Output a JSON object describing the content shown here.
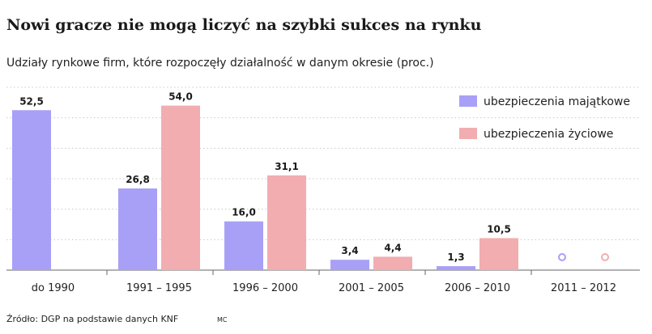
{
  "title": "Nowi gracze nie mogą liczyć na szybki sukces na rynku",
  "subtitle": "Udziały rynkowe firm, które rozpoczęły działalność w danym okresie (proc.)",
  "source": "Źródło: DGP na podstawie danych KNF",
  "credit": "MC",
  "colors": {
    "majatkowe": "#a8a0f6",
    "zyciowe": "#f2adb1",
    "grid": "#c8c8c8",
    "axis": "#666666"
  },
  "chart_data": {
    "type": "bar",
    "categories": [
      "do 1990",
      "1991 – 1995",
      "1996 – 2000",
      "2001 – 2005",
      "2006 – 2010",
      "2011 – 2012"
    ],
    "series": [
      {
        "name": "ubezpieczenia majątkowe",
        "values": [
          52.5,
          26.8,
          16.0,
          3.4,
          1.3,
          null
        ],
        "labels": [
          "52,5",
          "26,8",
          "16,0",
          "3,4",
          "1,3",
          ""
        ]
      },
      {
        "name": "ubezpieczenia życiowe",
        "values": [
          null,
          54.0,
          31.1,
          4.4,
          10.5,
          null
        ],
        "labels": [
          "",
          "54,0",
          "31,1",
          "4,4",
          "10,5",
          ""
        ]
      }
    ],
    "ylim": [
      0,
      60
    ],
    "grid": true,
    "legend": "top-right",
    "xlabel": "",
    "ylabel": ""
  }
}
